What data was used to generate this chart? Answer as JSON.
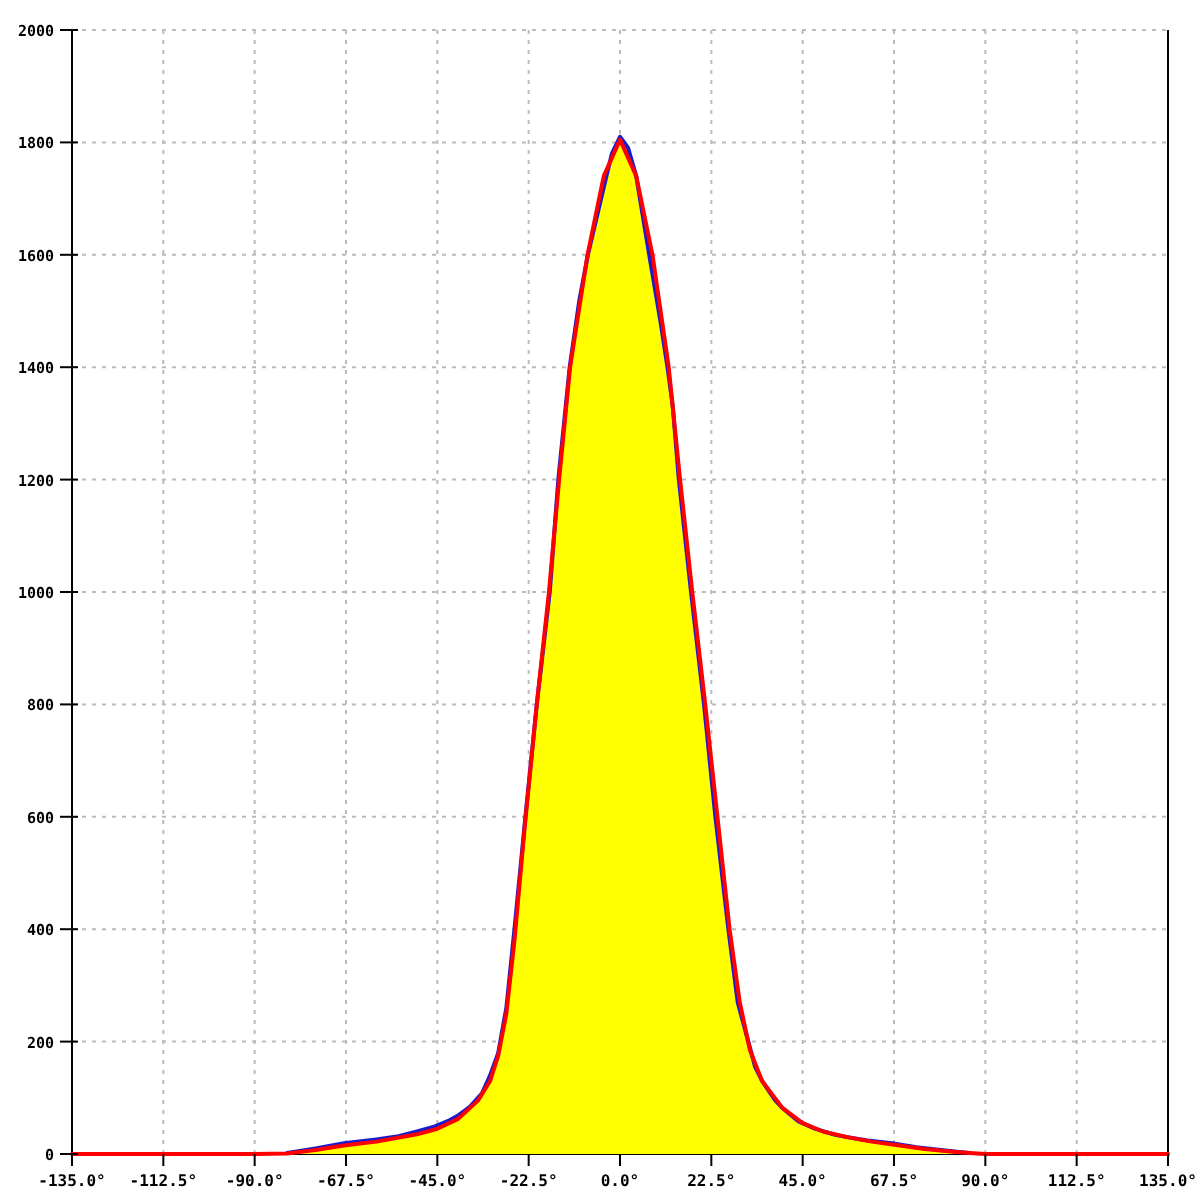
{
  "chart_data": {
    "type": "area",
    "xlim": [
      -135,
      135
    ],
    "ylim": [
      0,
      2000
    ],
    "xticks": [
      {
        "value": -135,
        "label": "-135.0°"
      },
      {
        "value": -112.5,
        "label": "-112.5°"
      },
      {
        "value": -90,
        "label": "-90.0°"
      },
      {
        "value": -67.5,
        "label": "-67.5°"
      },
      {
        "value": -45,
        "label": "-45.0°"
      },
      {
        "value": -22.5,
        "label": "-22.5°"
      },
      {
        "value": 0,
        "label": "0.0°"
      },
      {
        "value": 22.5,
        "label": "22.5°"
      },
      {
        "value": 45,
        "label": "45.0°"
      },
      {
        "value": 67.5,
        "label": "67.5°"
      },
      {
        "value": 90,
        "label": "90.0°"
      },
      {
        "value": 112.5,
        "label": "112.5°"
      },
      {
        "value": 135,
        "label": "135.0°"
      }
    ],
    "yticks": [
      0,
      200,
      400,
      600,
      800,
      1000,
      1200,
      1400,
      1600,
      1800,
      2000
    ],
    "grid": true,
    "series": [
      {
        "color": "#ffff00",
        "x": [
          -82,
          -75,
          -68,
          -60,
          -55,
          -50,
          -46,
          -42,
          -40,
          -37,
          -34,
          -32,
          -30,
          -28,
          -26,
          -23.3,
          -20.5,
          -17.3,
          -15.2,
          -12.4,
          -10,
          -7.9,
          -4,
          -2,
          0,
          2,
          4,
          7.2,
          10,
          11.7,
          13,
          14.5,
          17.5,
          20.7,
          23.5,
          26.7,
          29,
          31.6,
          33.3,
          35,
          38.2,
          40,
          44,
          48,
          53,
          56,
          61,
          67,
          73,
          79,
          86
        ],
        "values": [
          2,
          10,
          19,
          26,
          31,
          40,
          48,
          60,
          68,
          84,
          108,
          140,
          180,
          260,
          400,
          600,
          800,
          1000,
          1200,
          1400,
          1520,
          1600,
          1720,
          1780,
          1810,
          1790,
          1740,
          1600,
          1480,
          1400,
          1330,
          1200,
          1000,
          800,
          600,
          400,
          270,
          200,
          155,
          130,
          96,
          82,
          58,
          45,
          34,
          30,
          24,
          19,
          12,
          7,
          2
        ]
      },
      {
        "type": "line",
        "color": "#ff0000",
        "x": [
          -135,
          -90,
          -82,
          -75,
          -68,
          -60,
          -50,
          -45,
          -40,
          -35,
          -32,
          -30,
          -28,
          -26,
          -23.5,
          -20.5,
          -17.5,
          -15,
          -12.3,
          -8,
          -4,
          0,
          4,
          8,
          12,
          14.8,
          17.8,
          21,
          24,
          27,
          29.5,
          32,
          35,
          40,
          45,
          50,
          56,
          62,
          68,
          75,
          82,
          88,
          90,
          135
        ],
        "values": [
          0,
          0,
          1,
          7,
          15,
          22,
          35,
          45,
          62,
          95,
          130,
          175,
          250,
          380,
          580,
          800,
          1000,
          1200,
          1400,
          1600,
          1740,
          1805,
          1740,
          1600,
          1400,
          1200,
          1000,
          800,
          600,
          400,
          270,
          185,
          130,
          82,
          55,
          40,
          30,
          22,
          16,
          9,
          4,
          1,
          0,
          0
        ]
      }
    ]
  }
}
